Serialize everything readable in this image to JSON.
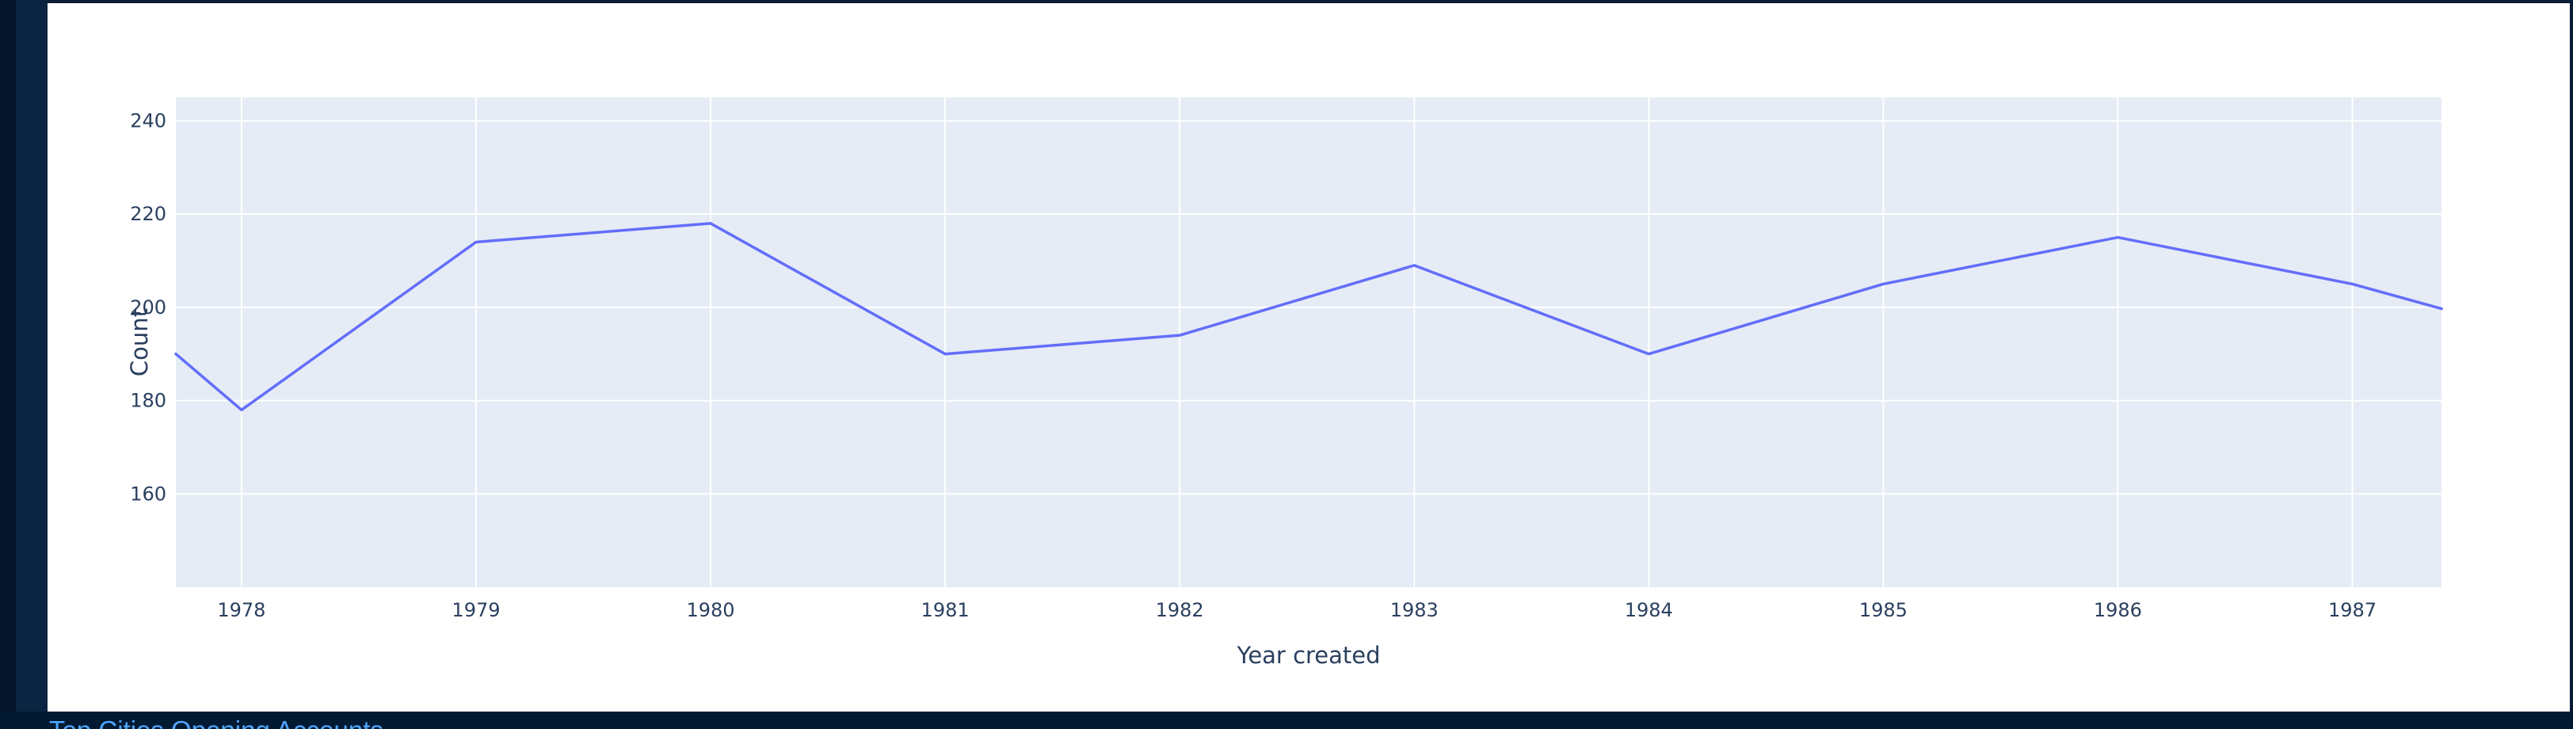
{
  "page": {
    "caption": "Top Cities Opening Accounts"
  },
  "colors": {
    "background": "#031a33",
    "card": "#ffffff",
    "plot_bg": "#e5ecf6",
    "grid": "#ffffff",
    "line": "#636efa",
    "text": "#2a3f5f",
    "caption": "#4fa6ff"
  },
  "chart_data": {
    "type": "line",
    "title": "",
    "xlabel": "Year created",
    "ylabel": "Count",
    "xlim": [
      1977.72,
      1987.38
    ],
    "ylim": [
      140,
      245
    ],
    "x_ticks": [
      1978,
      1979,
      1980,
      1981,
      1982,
      1983,
      1984,
      1985,
      1986,
      1987
    ],
    "x_tick_labels": [
      "1978",
      "1979",
      "1980",
      "1981",
      "1982",
      "1983",
      "1984",
      "1985",
      "1986",
      "1987"
    ],
    "y_ticks": [
      160,
      180,
      200,
      220,
      240
    ],
    "y_tick_labels": [
      "160",
      "180",
      "200",
      "220",
      "240"
    ],
    "grid": true,
    "series": [
      {
        "color": "#636efa",
        "x": [
          1977.72,
          1978,
          1979,
          1980,
          1981,
          1982,
          1983,
          1984,
          1985,
          1986,
          1987,
          1987.38
        ],
        "y": [
          190,
          178,
          214,
          218,
          190,
          194,
          209,
          190,
          205,
          215,
          205,
          199.7
        ]
      }
    ]
  }
}
